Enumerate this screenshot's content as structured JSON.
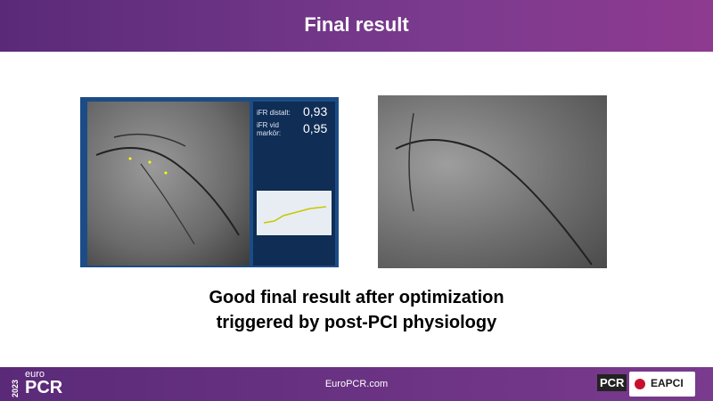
{
  "header": {
    "title": "Final result"
  },
  "left_image": {
    "ifr_distal_label": "iFR distalt:",
    "ifr_distal_value": "0,93",
    "ifr_marker_label": "iFR vid markör:",
    "ifr_marker_value": "0,95"
  },
  "caption": {
    "line1": "Good final result after optimization",
    "line2": "triggered by post-PCI physiology"
  },
  "footer": {
    "year": "2023",
    "brand_prefix": "euro",
    "brand": "PCR",
    "website": "EuroPCR.com",
    "logo_pcr": "PCR",
    "logo_eapci": "EAPCI"
  }
}
